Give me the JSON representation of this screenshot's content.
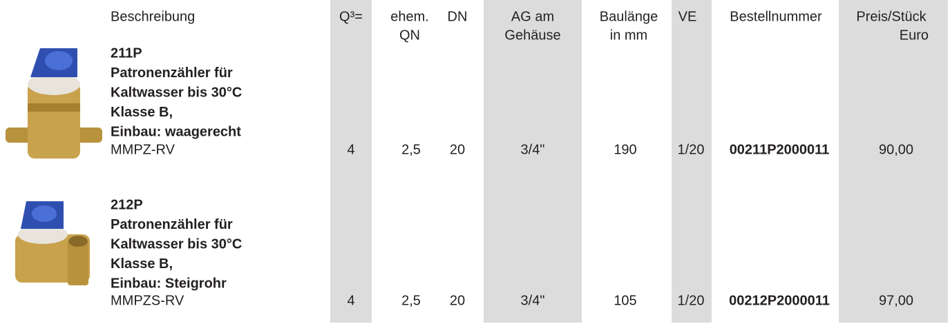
{
  "header": {
    "columns": [
      [
        "Beschreibung"
      ],
      [
        "Q³="
      ],
      [
        "ehem.",
        "QN"
      ],
      [
        "DN"
      ],
      [
        "AG am",
        "Gehäuse"
      ],
      [
        "Baulänge",
        "in mm"
      ],
      [
        "VE"
      ],
      [
        "Bestellnummer"
      ],
      [
        "Preis/Stück",
        "Euro"
      ]
    ]
  },
  "rows": [
    {
      "title_lines": [
        "211P",
        "Patronenzähler für",
        "Kaltwasser bis 30°C",
        "Klasse B,",
        "Einbau: waagerecht"
      ],
      "model": "MMPZ-RV",
      "cells": [
        "4",
        "2,5",
        "20",
        "3/4\"",
        "190",
        "1/20",
        "00211P2000011",
        "90,00"
      ]
    },
    {
      "title_lines": [
        "212P",
        "Patronenzähler für",
        "Kaltwasser bis 30°C",
        "Klasse B,",
        "Einbau: Steigrohr"
      ],
      "model": "MMPZS-RV",
      "cells": [
        "4",
        "2,5",
        "20",
        "3/4\"",
        "105",
        "1/20",
        "00212P2000011",
        "97,00"
      ]
    }
  ]
}
